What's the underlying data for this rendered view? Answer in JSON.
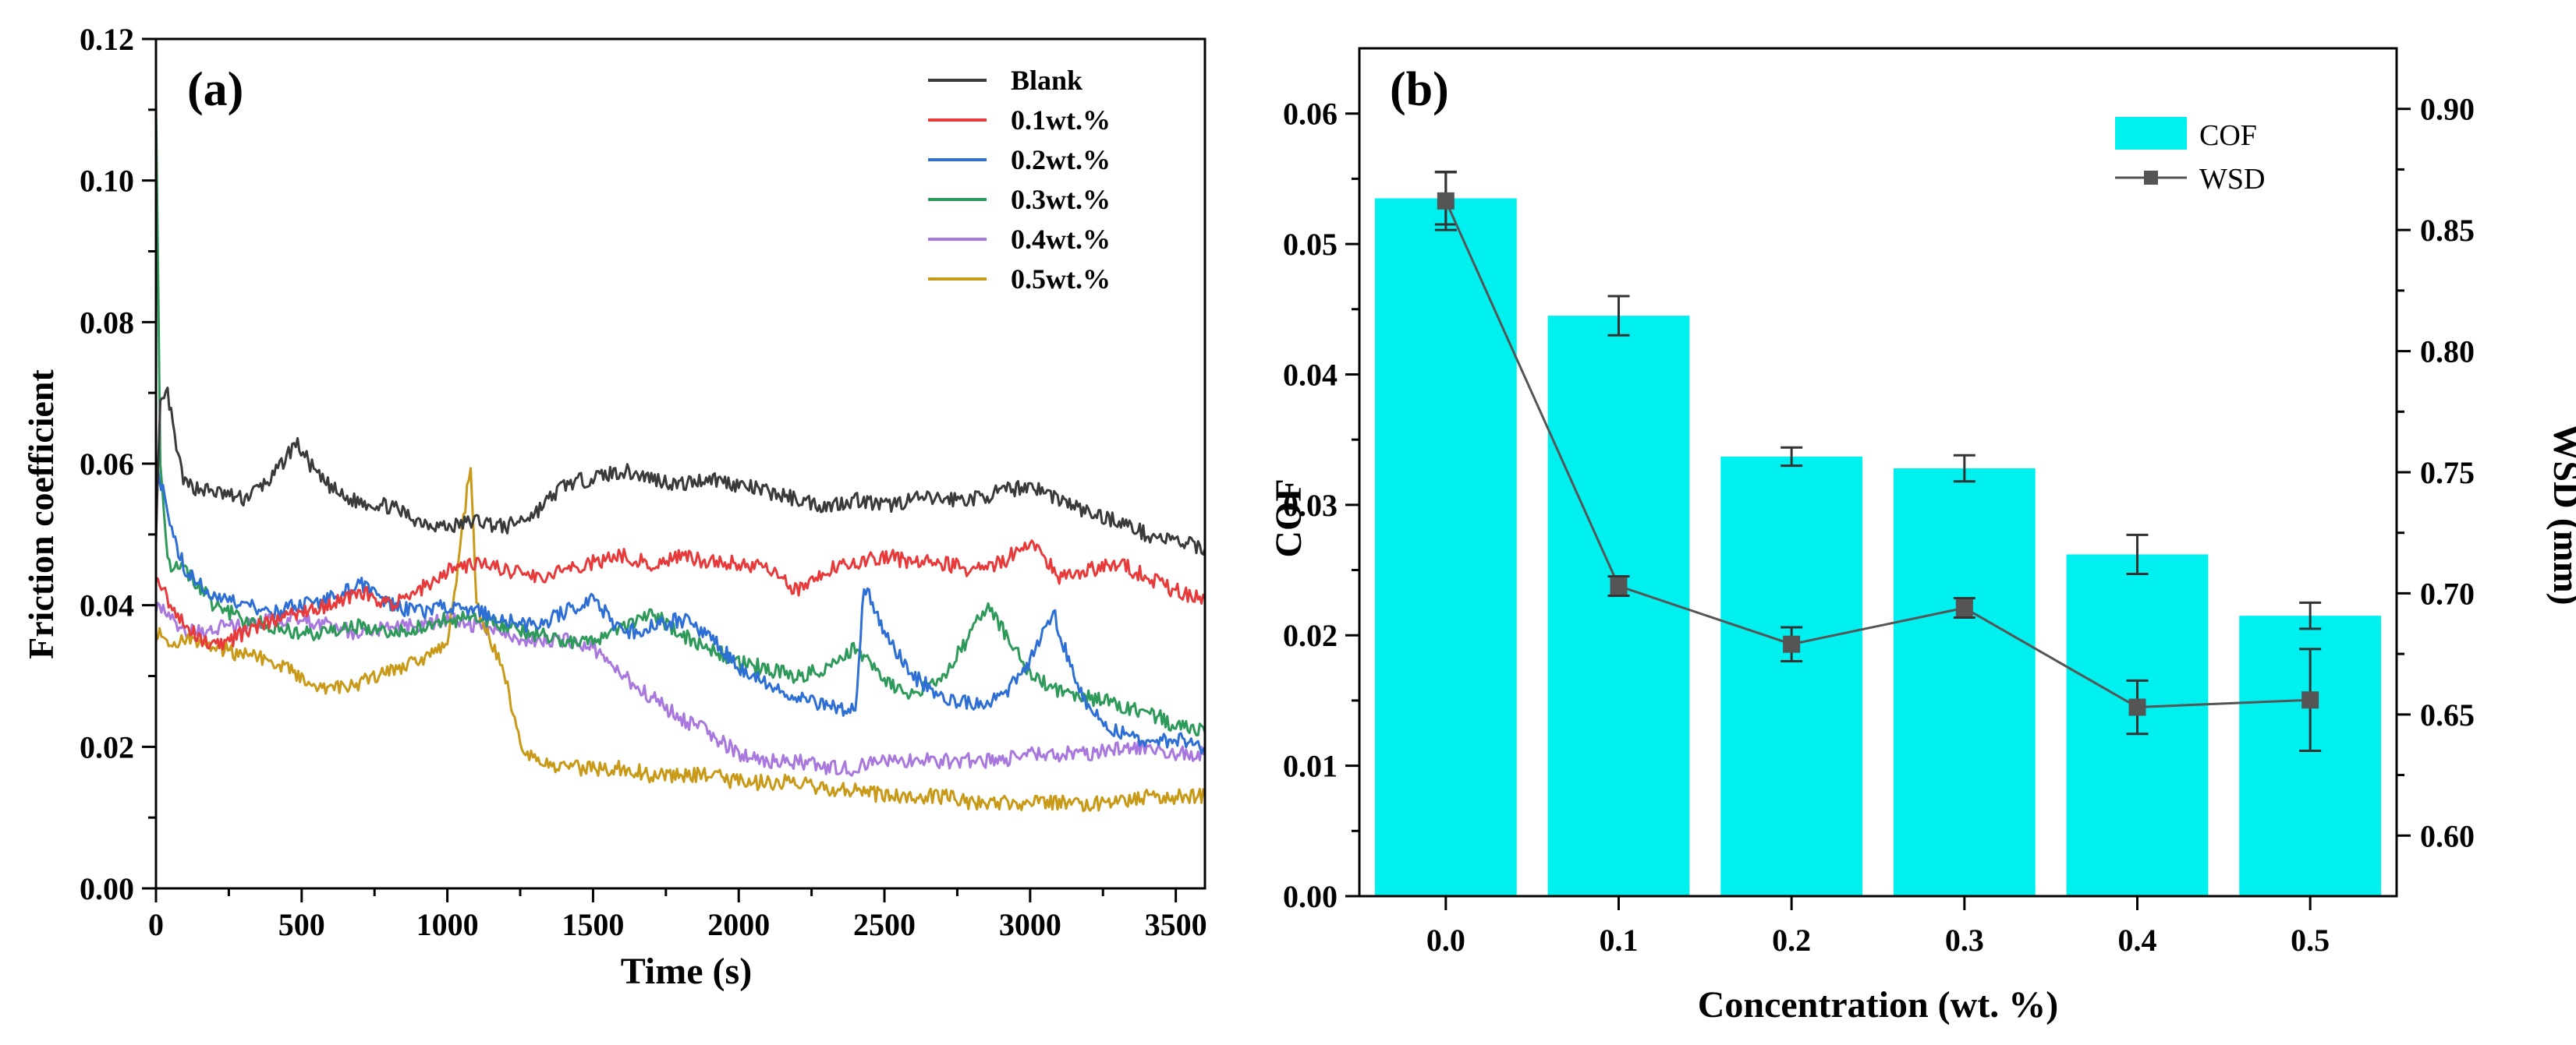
{
  "chart_data": [
    {
      "type": "line",
      "panel_label": "(a)",
      "xlabel": "Time (s)",
      "ylabel": "Friction coefficient",
      "xlim": [
        0,
        3600
      ],
      "ylim": [
        0,
        0.12
      ],
      "xticks": [
        "0",
        "500",
        "1000",
        "1500",
        "2000",
        "2500",
        "3000",
        "3500"
      ],
      "yticks": [
        "0.00",
        "0.02",
        "0.04",
        "0.06",
        "0.08",
        "0.10",
        "0.12"
      ],
      "legend_position": "top-right",
      "grid": false,
      "series": [
        {
          "name": "Blank",
          "color": "#3a3a3a",
          "points": [
            [
              0,
              0.05
            ],
            [
              15,
              0.068
            ],
            [
              40,
              0.07
            ],
            [
              70,
              0.062
            ],
            [
              100,
              0.057
            ],
            [
              200,
              0.056
            ],
            [
              300,
              0.055
            ],
            [
              400,
              0.058
            ],
            [
              480,
              0.063
            ],
            [
              560,
              0.058
            ],
            [
              650,
              0.055
            ],
            [
              800,
              0.054
            ],
            [
              900,
              0.052
            ],
            [
              1000,
              0.051
            ],
            [
              1100,
              0.052
            ],
            [
              1200,
              0.051
            ],
            [
              1300,
              0.053
            ],
            [
              1400,
              0.057
            ],
            [
              1500,
              0.058
            ],
            [
              1600,
              0.059
            ],
            [
              1700,
              0.058
            ],
            [
              1800,
              0.057
            ],
            [
              1900,
              0.058
            ],
            [
              2000,
              0.057
            ],
            [
              2100,
              0.056
            ],
            [
              2200,
              0.055
            ],
            [
              2300,
              0.054
            ],
            [
              2400,
              0.055
            ],
            [
              2500,
              0.054
            ],
            [
              2600,
              0.055
            ],
            [
              2700,
              0.055
            ],
            [
              2800,
              0.055
            ],
            [
              2900,
              0.056
            ],
            [
              3000,
              0.057
            ],
            [
              3100,
              0.055
            ],
            [
              3200,
              0.053
            ],
            [
              3300,
              0.052
            ],
            [
              3400,
              0.05
            ],
            [
              3500,
              0.049
            ],
            [
              3600,
              0.048
            ]
          ]
        },
        {
          "name": "0.1wt.%",
          "color": "#e83a3a",
          "points": [
            [
              0,
              0.045
            ],
            [
              50,
              0.04
            ],
            [
              100,
              0.037
            ],
            [
              200,
              0.034
            ],
            [
              300,
              0.036
            ],
            [
              400,
              0.038
            ],
            [
              500,
              0.039
            ],
            [
              600,
              0.04
            ],
            [
              700,
              0.042
            ],
            [
              800,
              0.04
            ],
            [
              900,
              0.042
            ],
            [
              1000,
              0.045
            ],
            [
              1100,
              0.046
            ],
            [
              1200,
              0.045
            ],
            [
              1300,
              0.044
            ],
            [
              1400,
              0.045
            ],
            [
              1500,
              0.046
            ],
            [
              1600,
              0.047
            ],
            [
              1700,
              0.046
            ],
            [
              1800,
              0.047
            ],
            [
              1900,
              0.046
            ],
            [
              2000,
              0.046
            ],
            [
              2100,
              0.045
            ],
            [
              2200,
              0.042
            ],
            [
              2300,
              0.045
            ],
            [
              2400,
              0.046
            ],
            [
              2500,
              0.047
            ],
            [
              2600,
              0.046
            ],
            [
              2700,
              0.046
            ],
            [
              2800,
              0.045
            ],
            [
              2900,
              0.046
            ],
            [
              3000,
              0.049
            ],
            [
              3100,
              0.044
            ],
            [
              3200,
              0.045
            ],
            [
              3300,
              0.046
            ],
            [
              3400,
              0.044
            ],
            [
              3500,
              0.042
            ],
            [
              3600,
              0.041
            ]
          ]
        },
        {
          "name": "0.2wt.%",
          "color": "#2d6fd4",
          "points": [
            [
              0,
              0.06
            ],
            [
              30,
              0.055
            ],
            [
              60,
              0.05
            ],
            [
              100,
              0.045
            ],
            [
              200,
              0.041
            ],
            [
              300,
              0.04
            ],
            [
              400,
              0.039
            ],
            [
              500,
              0.04
            ],
            [
              600,
              0.041
            ],
            [
              700,
              0.043
            ],
            [
              800,
              0.04
            ],
            [
              900,
              0.039
            ],
            [
              1000,
              0.04
            ],
            [
              1100,
              0.039
            ],
            [
              1200,
              0.038
            ],
            [
              1300,
              0.037
            ],
            [
              1400,
              0.039
            ],
            [
              1500,
              0.041
            ],
            [
              1600,
              0.036
            ],
            [
              1700,
              0.037
            ],
            [
              1800,
              0.038
            ],
            [
              1900,
              0.036
            ],
            [
              2000,
              0.031
            ],
            [
              2100,
              0.029
            ],
            [
              2200,
              0.027
            ],
            [
              2300,
              0.026
            ],
            [
              2400,
              0.025
            ],
            [
              2430,
              0.043
            ],
            [
              2500,
              0.036
            ],
            [
              2600,
              0.03
            ],
            [
              2700,
              0.027
            ],
            [
              2800,
              0.026
            ],
            [
              2900,
              0.027
            ],
            [
              3000,
              0.032
            ],
            [
              3080,
              0.039
            ],
            [
              3150,
              0.03
            ],
            [
              3200,
              0.025
            ],
            [
              3300,
              0.022
            ],
            [
              3400,
              0.021
            ],
            [
              3500,
              0.021
            ],
            [
              3600,
              0.02
            ]
          ]
        },
        {
          "name": "0.3wt.%",
          "color": "#2e9a5a",
          "points": [
            [
              0,
              0.112
            ],
            [
              15,
              0.06
            ],
            [
              40,
              0.046
            ],
            [
              100,
              0.045
            ],
            [
              200,
              0.04
            ],
            [
              300,
              0.038
            ],
            [
              400,
              0.037
            ],
            [
              500,
              0.036
            ],
            [
              600,
              0.036
            ],
            [
              700,
              0.037
            ],
            [
              800,
              0.036
            ],
            [
              900,
              0.037
            ],
            [
              1000,
              0.038
            ],
            [
              1100,
              0.038
            ],
            [
              1200,
              0.037
            ],
            [
              1300,
              0.036
            ],
            [
              1400,
              0.035
            ],
            [
              1500,
              0.035
            ],
            [
              1600,
              0.037
            ],
            [
              1700,
              0.039
            ],
            [
              1800,
              0.036
            ],
            [
              1900,
              0.034
            ],
            [
              2000,
              0.032
            ],
            [
              2100,
              0.031
            ],
            [
              2200,
              0.03
            ],
            [
              2300,
              0.031
            ],
            [
              2400,
              0.034
            ],
            [
              2500,
              0.029
            ],
            [
              2600,
              0.027
            ],
            [
              2700,
              0.03
            ],
            [
              2800,
              0.036
            ],
            [
              2850,
              0.04
            ],
            [
              2900,
              0.037
            ],
            [
              3000,
              0.03
            ],
            [
              3100,
              0.028
            ],
            [
              3200,
              0.027
            ],
            [
              3300,
              0.026
            ],
            [
              3400,
              0.025
            ],
            [
              3500,
              0.023
            ],
            [
              3600,
              0.022
            ]
          ]
        },
        {
          "name": "0.4wt.%",
          "color": "#a978de",
          "points": [
            [
              0,
              0.04
            ],
            [
              50,
              0.038
            ],
            [
              100,
              0.036
            ],
            [
              200,
              0.037
            ],
            [
              300,
              0.037
            ],
            [
              400,
              0.038
            ],
            [
              500,
              0.038
            ],
            [
              600,
              0.037
            ],
            [
              700,
              0.036
            ],
            [
              800,
              0.037
            ],
            [
              900,
              0.037
            ],
            [
              1000,
              0.038
            ],
            [
              1100,
              0.037
            ],
            [
              1200,
              0.036
            ],
            [
              1300,
              0.035
            ],
            [
              1400,
              0.035
            ],
            [
              1500,
              0.034
            ],
            [
              1600,
              0.03
            ],
            [
              1700,
              0.027
            ],
            [
              1800,
              0.024
            ],
            [
              1900,
              0.022
            ],
            [
              2000,
              0.019
            ],
            [
              2100,
              0.018
            ],
            [
              2200,
              0.018
            ],
            [
              2300,
              0.017
            ],
            [
              2400,
              0.017
            ],
            [
              2500,
              0.018
            ],
            [
              2600,
              0.018
            ],
            [
              2700,
              0.018
            ],
            [
              2800,
              0.018
            ],
            [
              2900,
              0.018
            ],
            [
              3000,
              0.019
            ],
            [
              3100,
              0.019
            ],
            [
              3200,
              0.019
            ],
            [
              3300,
              0.02
            ],
            [
              3400,
              0.02
            ],
            [
              3500,
              0.019
            ],
            [
              3600,
              0.019
            ]
          ]
        },
        {
          "name": "0.5wt.%",
          "color": "#c89a18",
          "points": [
            [
              0,
              0.036
            ],
            [
              50,
              0.035
            ],
            [
              100,
              0.035
            ],
            [
              200,
              0.034
            ],
            [
              300,
              0.033
            ],
            [
              400,
              0.032
            ],
            [
              500,
              0.03
            ],
            [
              600,
              0.028
            ],
            [
              700,
              0.029
            ],
            [
              800,
              0.031
            ],
            [
              900,
              0.032
            ],
            [
              1000,
              0.034
            ],
            [
              1080,
              0.06
            ],
            [
              1100,
              0.04
            ],
            [
              1150,
              0.035
            ],
            [
              1200,
              0.03
            ],
            [
              1250,
              0.02
            ],
            [
              1300,
              0.018
            ],
            [
              1400,
              0.017
            ],
            [
              1500,
              0.017
            ],
            [
              1600,
              0.017
            ],
            [
              1700,
              0.016
            ],
            [
              1800,
              0.016
            ],
            [
              1900,
              0.016
            ],
            [
              2000,
              0.015
            ],
            [
              2100,
              0.015
            ],
            [
              2200,
              0.015
            ],
            [
              2300,
              0.014
            ],
            [
              2400,
              0.014
            ],
            [
              2500,
              0.013
            ],
            [
              2600,
              0.013
            ],
            [
              2700,
              0.013
            ],
            [
              2800,
              0.012
            ],
            [
              2900,
              0.012
            ],
            [
              3000,
              0.012
            ],
            [
              3100,
              0.012
            ],
            [
              3200,
              0.012
            ],
            [
              3300,
              0.012
            ],
            [
              3400,
              0.013
            ],
            [
              3500,
              0.013
            ],
            [
              3600,
              0.013
            ]
          ]
        }
      ]
    },
    {
      "type": "bar",
      "panel_label": "(b)",
      "xlabel": "Concentration (wt. %)",
      "ylabel": "COF",
      "y2label": "WSD (mm)",
      "categories": [
        "0.0",
        "0.1",
        "0.2",
        "0.3",
        "0.4",
        "0.5"
      ],
      "ylim": [
        0,
        0.065
      ],
      "y2lim": [
        0.575,
        0.925
      ],
      "yticks": [
        "0.00",
        "0.01",
        "0.02",
        "0.03",
        "0.04",
        "0.05",
        "0.06"
      ],
      "y2ticks": [
        "0.60",
        "0.65",
        "0.70",
        "0.75",
        "0.80",
        "0.85",
        "0.90"
      ],
      "legend_position": "top-right",
      "grid": false,
      "series": [
        {
          "name": "COF",
          "color": "#00f0f0",
          "axis": "left",
          "values": [
            0.0535,
            0.0445,
            0.0337,
            0.0328,
            0.0262,
            0.0215
          ],
          "errors": [
            0.002,
            0.0015,
            0.0007,
            0.001,
            0.0015,
            0.001
          ]
        },
        {
          "name": "WSD",
          "color": "#555555",
          "axis": "right",
          "values": [
            0.862,
            0.703,
            0.679,
            0.694,
            0.653,
            0.656
          ],
          "errors": [
            0.012,
            0.004,
            0.007,
            0.004,
            0.011,
            0.021
          ]
        }
      ]
    }
  ]
}
